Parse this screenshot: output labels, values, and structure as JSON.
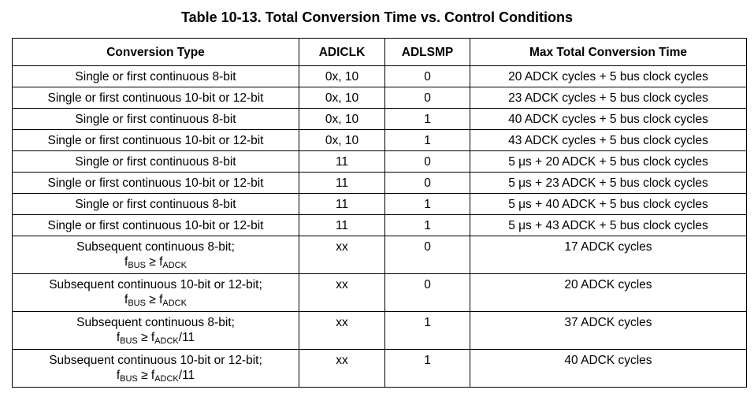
{
  "title": "Table 10-13. Total Conversion Time vs. Control Conditions",
  "headers": [
    "Conversion Type",
    "ADICLK",
    "ADLSMP",
    "Max Total Conversion Time"
  ],
  "rows": [
    {
      "type": "Single or first continuous 8-bit",
      "adiclk": "0x, 10",
      "adlsmp": "0",
      "time": "20 ADCK cycles + 5 bus clock cycles"
    },
    {
      "type": "Single or first continuous 10-bit or 12-bit",
      "adiclk": "0x, 10",
      "adlsmp": "0",
      "time": "23 ADCK cycles + 5 bus clock cycles"
    },
    {
      "type": "Single or first continuous 8-bit",
      "adiclk": "0x, 10",
      "adlsmp": "1",
      "time": "40 ADCK cycles + 5 bus clock cycles"
    },
    {
      "type": "Single or first continuous 10-bit or 12-bit",
      "adiclk": "0x, 10",
      "adlsmp": "1",
      "time": "43 ADCK cycles + 5 bus clock cycles"
    },
    {
      "type": "Single or first continuous 8-bit",
      "adiclk": "11",
      "adlsmp": "0",
      "time": "5 μs + 20 ADCK + 5 bus clock cycles"
    },
    {
      "type": "Single or first continuous 10-bit or 12-bit",
      "adiclk": "11",
      "adlsmp": "0",
      "time": "5 μs + 23 ADCK + 5 bus clock cycles"
    },
    {
      "type": "Single or first continuous 8-bit",
      "adiclk": "11",
      "adlsmp": "1",
      "time": "5 μs + 40 ADCK + 5 bus clock cycles"
    },
    {
      "type": "Single or first continuous 10-bit or 12-bit",
      "adiclk": "11",
      "adlsmp": "1",
      "time": "5 μs + 43 ADCK + 5 bus clock cycles"
    },
    {
      "type": "Subsequent continuous 8-bit;",
      "cond": {
        "f1": "f",
        "s1": "BUS",
        "op": " ≥ ",
        "f2": "f",
        "s2": "ADCK",
        "suffix": ""
      },
      "adiclk": "xx",
      "adlsmp": "0",
      "time": "17 ADCK cycles"
    },
    {
      "type": "Subsequent continuous 10-bit or 12-bit;",
      "cond": {
        "f1": "f",
        "s1": "BUS",
        "op": " ≥ ",
        "f2": "f",
        "s2": "ADCK",
        "suffix": ""
      },
      "adiclk": "xx",
      "adlsmp": "0",
      "time": "20 ADCK cycles"
    },
    {
      "type": "Subsequent continuous 8-bit;",
      "cond": {
        "f1": "f",
        "s1": "BUS",
        "op": " ≥ ",
        "f2": "f",
        "s2": "ADCK",
        "suffix": "/11"
      },
      "adiclk": "xx",
      "adlsmp": "1",
      "time": "37 ADCK cycles"
    },
    {
      "type": "Subsequent continuous 10-bit or 12-bit;",
      "cond": {
        "f1": "f",
        "s1": "BUS",
        "op": " ≥ ",
        "f2": "f",
        "s2": "ADCK",
        "suffix": "/11"
      },
      "adiclk": "xx",
      "adlsmp": "1",
      "time": "40 ADCK cycles"
    }
  ]
}
